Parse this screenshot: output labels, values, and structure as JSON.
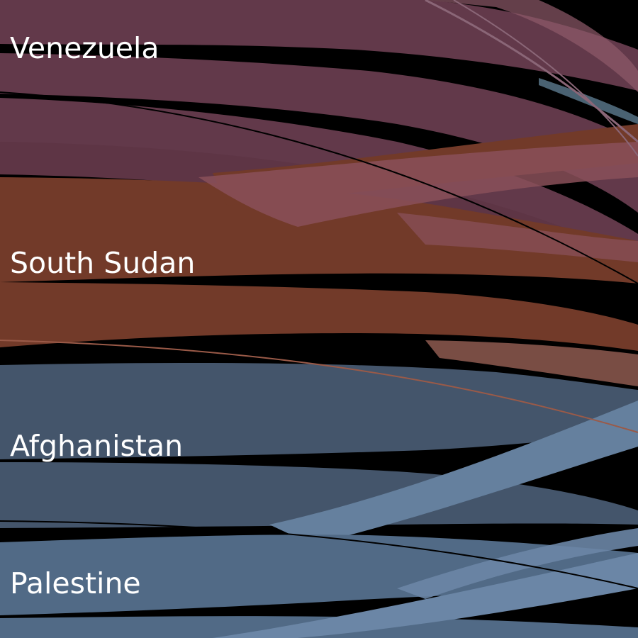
{
  "diagram": {
    "type": "flow-ribbons",
    "nodes": [
      {
        "id": "venezuela",
        "label": "Venezuela",
        "color": "#62394a"
      },
      {
        "id": "south-sudan",
        "label": "South Sudan",
        "color": "#723a29"
      },
      {
        "id": "afghanistan",
        "label": "Afghanistan",
        "color": "#44556b"
      },
      {
        "id": "palestine",
        "label": "Palestine",
        "color": "#516a86"
      }
    ]
  }
}
